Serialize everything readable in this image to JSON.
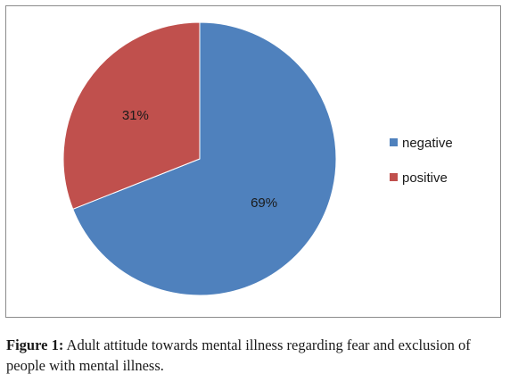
{
  "chart_data": {
    "type": "pie",
    "categories": [
      "negative",
      "positive"
    ],
    "values": [
      69,
      31
    ],
    "value_labels": [
      "69%",
      "31%"
    ],
    "colors": [
      "#4f81bd",
      "#c0504d"
    ],
    "legend": {
      "position": "right",
      "entries": [
        "negative",
        "positive"
      ]
    },
    "start_angle": "12 o'clock",
    "direction": "clockwise",
    "title": "",
    "xlabel": "",
    "ylabel": ""
  },
  "caption": {
    "label": "Figure 1:",
    "text": " Adult attitude towards mental illness regarding fear and exclusion of people with mental illness."
  }
}
